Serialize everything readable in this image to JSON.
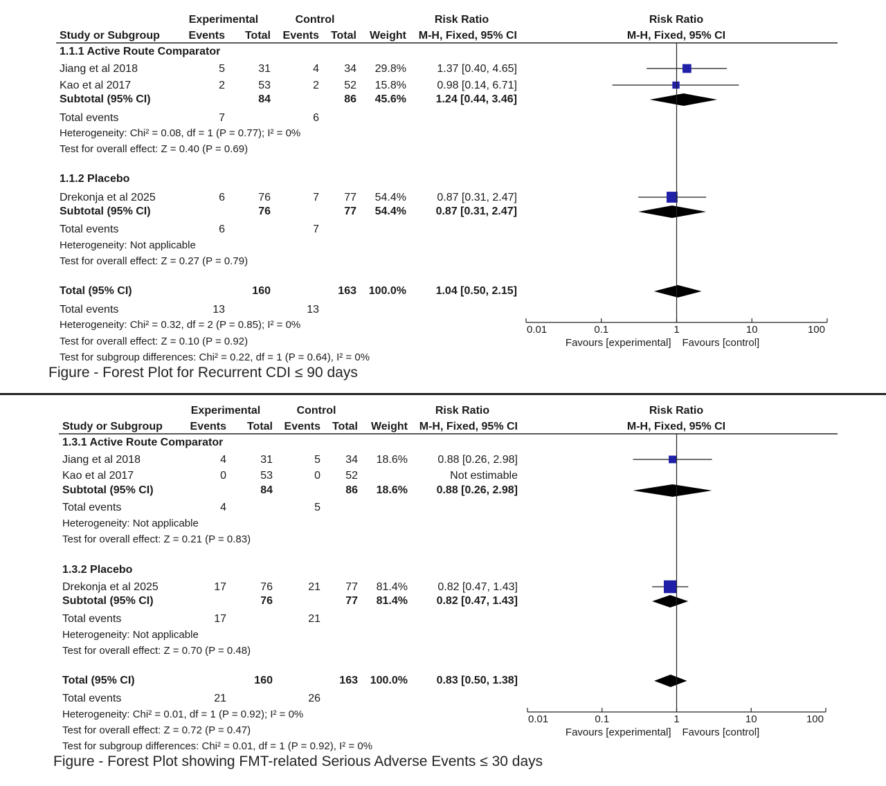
{
  "figures": [
    {
      "caption": "Figure - Forest Plot for Recurrent CDI ≤ 90 days",
      "headers": {
        "experimental": "Experimental",
        "control": "Control",
        "risk_ratio": "Risk Ratio",
        "study": "Study or Subgroup",
        "events": "Events",
        "total": "Total",
        "weight": "Weight",
        "method": "M-H, Fixed, 95% CI",
        "plot_title": "Risk Ratio",
        "plot_method": "M-H, Fixed, 95% CI"
      },
      "footer": {
        "total_label": "Total (95% CI)",
        "total_exp_total": "160",
        "total_ctrl_total": "163",
        "total_weight": "100.0%",
        "total_ci": "1.04 [0.50, 2.15]",
        "total_events_label": "Total events",
        "total_events_exp": "13",
        "total_events_ctrl": "13",
        "heterogeneity": "Heterogeneity: Chi² = 0.32, df = 2 (P = 0.85); I² = 0%",
        "overall": "Test for overall effect: Z = 0.10 (P = 0.92)",
        "subgroup_diff": "Test for subgroup differences: Chi² = 0.22, df = 1 (P = 0.64), I² = 0%"
      },
      "axis": {
        "ticks": [
          "0.01",
          "0.1",
          "1",
          "10",
          "100"
        ],
        "favours_left": "Favours [experimental]",
        "favours_right": "Favours [control]"
      },
      "subgroups": [
        {
          "title": "1.1.1 Active Route Comparator",
          "subtotal_label": "Subtotal (95% CI)",
          "subtotal_exp_total": "84",
          "subtotal_ctrl_total": "86",
          "subtotal_weight": "45.6%",
          "subtotal_ci": "1.24 [0.44, 3.46]",
          "total_events_label": "Total events",
          "total_events_exp": "7",
          "total_events_ctrl": "6",
          "heterogeneity": "Heterogeneity: Chi² = 0.08, df = 1 (P = 0.77); I² = 0%",
          "overall": "Test for overall effect: Z = 0.40 (P = 0.69)"
        },
        {
          "title": "1.1.2 Placebo",
          "subtotal_label": "Subtotal (95% CI)",
          "subtotal_exp_total": "76",
          "subtotal_ctrl_total": "77",
          "subtotal_weight": "54.4%",
          "subtotal_ci": "0.87 [0.31, 2.47]",
          "total_events_label": "Total events",
          "total_events_exp": "6",
          "total_events_ctrl": "7",
          "heterogeneity": "Heterogeneity: Not applicable",
          "overall": "Test for overall effect: Z = 0.27 (P = 0.79)"
        }
      ]
    },
    {
      "caption": "Figure - Forest Plot showing FMT-related Serious Adverse Events ≤ 30 days",
      "headers": {
        "experimental": "Experimental",
        "control": "Control",
        "risk_ratio": "Risk Ratio",
        "study": "Study or Subgroup",
        "events": "Events",
        "total": "Total",
        "weight": "Weight",
        "method": "M-H, Fixed, 95% CI",
        "plot_title": "Risk Ratio",
        "plot_method": "M-H, Fixed, 95% CI"
      },
      "footer": {
        "total_label": "Total (95% CI)",
        "total_exp_total": "160",
        "total_ctrl_total": "163",
        "total_weight": "100.0%",
        "total_ci": "0.83 [0.50, 1.38]",
        "total_events_label": "Total events",
        "total_events_exp": "21",
        "total_events_ctrl": "26",
        "heterogeneity": "Heterogeneity: Chi² = 0.01, df = 1 (P = 0.92); I² = 0%",
        "overall": "Test for overall effect: Z = 0.72 (P = 0.47)",
        "subgroup_diff": "Test for subgroup differences: Chi² = 0.01, df = 1 (P = 0.92), I² = 0%"
      },
      "axis": {
        "ticks": [
          "0.01",
          "0.1",
          "1",
          "10",
          "100"
        ],
        "favours_left": "Favours [experimental]",
        "favours_right": "Favours [control]"
      },
      "subgroups": [
        {
          "title": "1.3.1 Active Route Comparator",
          "subtotal_label": "Subtotal (95% CI)",
          "subtotal_exp_total": "84",
          "subtotal_ctrl_total": "86",
          "subtotal_weight": "18.6%",
          "subtotal_ci": "0.88 [0.26, 2.98]",
          "total_events_label": "Total events",
          "total_events_exp": "4",
          "total_events_ctrl": "5",
          "heterogeneity": "Heterogeneity: Not applicable",
          "overall": "Test for overall effect: Z = 0.21 (P = 0.83)"
        },
        {
          "title": "1.3.2 Placebo",
          "subtotal_label": "Subtotal (95% CI)",
          "subtotal_exp_total": "76",
          "subtotal_ctrl_total": "77",
          "subtotal_weight": "81.4%",
          "subtotal_ci": "0.82 [0.47, 1.43]",
          "total_events_label": "Total events",
          "total_events_exp": "17",
          "total_events_ctrl": "21",
          "heterogeneity": "Heterogeneity: Not applicable",
          "overall": "Test for overall effect: Z = 0.70 (P = 0.48)"
        }
      ]
    }
  ],
  "chart_data": [
    {
      "type": "forest",
      "scale": "log",
      "xlim": [
        0.01,
        100
      ],
      "null_line": 1,
      "marker_color": "#1f1fa8",
      "studies": [
        {
          "subgroup": 0,
          "name": "Jiang et al 2018",
          "exp_events": 5,
          "exp_total": 31,
          "ctrl_events": 4,
          "ctrl_total": 34,
          "weight": 29.8,
          "weight_text": "29.8%",
          "rr": 1.37,
          "lo": 0.4,
          "hi": 4.65,
          "ci_text": "1.37 [0.40, 4.65]"
        },
        {
          "subgroup": 0,
          "name": "Kao et al 2017",
          "exp_events": 2,
          "exp_total": 53,
          "ctrl_events": 2,
          "ctrl_total": 52,
          "weight": 15.8,
          "weight_text": "15.8%",
          "rr": 0.98,
          "lo": 0.14,
          "hi": 6.71,
          "ci_text": "0.98 [0.14, 6.71]"
        },
        {
          "subgroup": 1,
          "name": "Drekonja et al 2025",
          "exp_events": 6,
          "exp_total": 76,
          "ctrl_events": 7,
          "ctrl_total": 77,
          "weight": 54.4,
          "weight_text": "54.4%",
          "rr": 0.87,
          "lo": 0.31,
          "hi": 2.47,
          "ci_text": "0.87 [0.31, 2.47]"
        }
      ],
      "subtotals": [
        {
          "rr": 1.24,
          "lo": 0.44,
          "hi": 3.46
        },
        {
          "rr": 0.87,
          "lo": 0.31,
          "hi": 2.47
        }
      ],
      "total": {
        "rr": 1.04,
        "lo": 0.5,
        "hi": 2.15
      }
    },
    {
      "type": "forest",
      "scale": "log",
      "xlim": [
        0.01,
        100
      ],
      "null_line": 1,
      "marker_color": "#1f1fa8",
      "studies": [
        {
          "subgroup": 0,
          "name": "Jiang et al 2018",
          "exp_events": 4,
          "exp_total": 31,
          "ctrl_events": 5,
          "ctrl_total": 34,
          "weight": 18.6,
          "weight_text": "18.6%",
          "rr": 0.88,
          "lo": 0.26,
          "hi": 2.98,
          "ci_text": "0.88 [0.26, 2.98]"
        },
        {
          "subgroup": 0,
          "name": "Kao et al 2017",
          "exp_events": 0,
          "exp_total": 53,
          "ctrl_events": 0,
          "ctrl_total": 52,
          "weight": null,
          "weight_text": "",
          "rr": null,
          "lo": null,
          "hi": null,
          "ci_text": "Not estimable"
        },
        {
          "subgroup": 1,
          "name": "Drekonja et al 2025",
          "exp_events": 17,
          "exp_total": 76,
          "ctrl_events": 21,
          "ctrl_total": 77,
          "weight": 81.4,
          "weight_text": "81.4%",
          "rr": 0.82,
          "lo": 0.47,
          "hi": 1.43,
          "ci_text": "0.82 [0.47, 1.43]"
        }
      ],
      "subtotals": [
        {
          "rr": 0.88,
          "lo": 0.26,
          "hi": 2.98
        },
        {
          "rr": 0.82,
          "lo": 0.47,
          "hi": 1.43
        }
      ],
      "total": {
        "rr": 0.83,
        "lo": 0.5,
        "hi": 1.38
      }
    }
  ]
}
